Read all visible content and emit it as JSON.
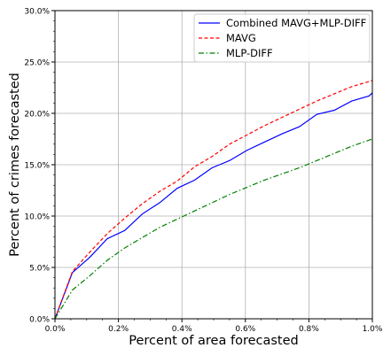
{
  "chart_data": {
    "type": "line",
    "title": "",
    "xlabel": "Percent of area forecasted",
    "ylabel": "Percent of crimes forecasted",
    "xlim": [
      0,
      1.0
    ],
    "ylim": [
      0,
      30
    ],
    "x_ticks": [
      0,
      0.2,
      0.4,
      0.6,
      0.8,
      1.0
    ],
    "x_tick_labels": [
      "0.0%",
      "0.2%",
      "0.4%",
      "0.6%",
      "0.8%",
      "1.0%"
    ],
    "y_ticks": [
      0,
      5,
      10,
      15,
      20,
      25,
      30
    ],
    "y_tick_labels": [
      "0.0%",
      "5.0%",
      "10.0%",
      "15.0%",
      "20.0%",
      "25.0%",
      "30.0%"
    ],
    "grid": true,
    "legend_position": "top-right",
    "series": [
      {
        "name": "Combined MAVG+MLP-DIFF",
        "color": "#0000ff",
        "dash": "solid",
        "x": [
          0,
          0.055,
          0.11,
          0.165,
          0.22,
          0.275,
          0.33,
          0.385,
          0.44,
          0.495,
          0.55,
          0.605,
          0.66,
          0.715,
          0.77,
          0.825,
          0.88,
          0.935,
          0.99,
          1.0
        ],
        "y": [
          0,
          4.5,
          6.0,
          7.8,
          8.6,
          10.2,
          11.3,
          12.7,
          13.5,
          14.7,
          15.4,
          16.4,
          17.2,
          18.0,
          18.7,
          19.9,
          20.3,
          21.2,
          21.7,
          22.0
        ]
      },
      {
        "name": "MAVG",
        "color": "#ff0000",
        "dash": "dashed",
        "x": [
          0,
          0.055,
          0.11,
          0.165,
          0.22,
          0.275,
          0.33,
          0.385,
          0.44,
          0.495,
          0.55,
          0.605,
          0.66,
          0.715,
          0.77,
          0.825,
          0.88,
          0.935,
          0.99,
          1.0
        ],
        "y": [
          0,
          4.6,
          6.5,
          8.3,
          9.8,
          11.2,
          12.4,
          13.4,
          14.8,
          15.8,
          17.0,
          17.9,
          18.8,
          19.6,
          20.4,
          21.2,
          21.9,
          22.6,
          23.1,
          23.2
        ]
      },
      {
        "name": "MLP-DIFF",
        "color": "#008000",
        "dash": "dashdot",
        "x": [
          0,
          0.055,
          0.11,
          0.165,
          0.22,
          0.275,
          0.33,
          0.385,
          0.44,
          0.495,
          0.55,
          0.605,
          0.66,
          0.715,
          0.77,
          0.825,
          0.88,
          0.935,
          0.99,
          1.0
        ],
        "y": [
          0,
          2.8,
          4.2,
          5.7,
          6.9,
          7.9,
          8.9,
          9.7,
          10.5,
          11.3,
          12.1,
          12.8,
          13.5,
          14.1,
          14.7,
          15.4,
          16.1,
          16.8,
          17.4,
          17.5
        ]
      }
    ]
  }
}
